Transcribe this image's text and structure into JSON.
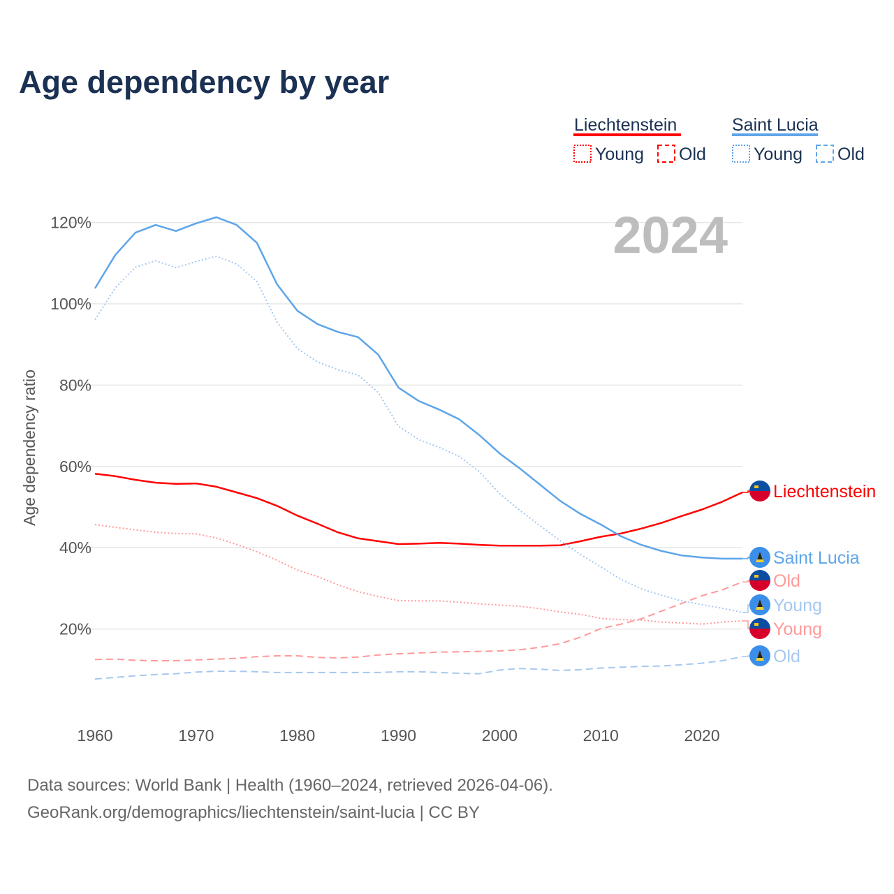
{
  "chart_data": {
    "type": "line",
    "title": "Age dependency by year",
    "year_label": "2024",
    "xlabel": "",
    "ylabel": "Age dependency ratio",
    "xlim": [
      1960,
      2024
    ],
    "ylim": [
      0,
      125
    ],
    "x_ticks": [
      "1960",
      "1970",
      "1980",
      "1990",
      "2000",
      "2010",
      "2020"
    ],
    "x_tick_values": [
      1960,
      1970,
      1980,
      1990,
      2000,
      2010,
      2020
    ],
    "y_ticks": [
      "20%",
      "40%",
      "60%",
      "80%",
      "100%",
      "120%"
    ],
    "y_tick_values": [
      20,
      40,
      60,
      80,
      100,
      120
    ],
    "grid": true,
    "legend": {
      "placement": "top-right",
      "groups": [
        {
          "country": "Liechtenstein",
          "color": "#ff0000",
          "items": [
            "Young",
            "Old"
          ]
        },
        {
          "country": "Saint Lucia",
          "color": "#5ea5e9",
          "items": [
            "Young",
            "Old"
          ]
        }
      ]
    },
    "x": [
      1960,
      1962,
      1964,
      1966,
      1968,
      1970,
      1972,
      1974,
      1976,
      1978,
      1980,
      1982,
      1984,
      1986,
      1988,
      1990,
      1992,
      1994,
      1996,
      1998,
      2000,
      2002,
      2004,
      2006,
      2008,
      2010,
      2012,
      2014,
      2016,
      2018,
      2020,
      2022,
      2024
    ],
    "series": [
      {
        "name": "Liechtenstein",
        "end_label": "Liechtenstein",
        "country": "Liechtenstein",
        "kind": "total",
        "color": "#ff0000",
        "dash": "solid",
        "values": [
          58.2,
          57.6,
          56.7,
          56.0,
          55.7,
          55.8,
          55.0,
          53.6,
          52.2,
          50.3,
          47.9,
          45.9,
          43.8,
          42.3,
          41.6,
          40.9,
          41.0,
          41.2,
          41.0,
          40.7,
          40.5,
          40.5,
          40.5,
          40.6,
          41.6,
          42.7,
          43.5,
          44.7,
          46.1,
          47.8,
          49.4,
          51.3,
          53.6
        ]
      },
      {
        "name": "Saint Lucia",
        "end_label": "Saint Lucia",
        "country": "Saint Lucia",
        "kind": "total",
        "color": "#5ea5e9",
        "dash": "solid",
        "values": [
          103.8,
          112.0,
          117.5,
          119.4,
          117.9,
          119.8,
          121.3,
          119.4,
          115.0,
          104.8,
          98.3,
          95.0,
          93.1,
          91.8,
          87.5,
          79.4,
          76.1,
          74.0,
          71.6,
          67.7,
          63.2,
          59.5,
          55.5,
          51.5,
          48.3,
          45.7,
          42.8,
          40.7,
          39.2,
          38.1,
          37.6,
          37.3,
          37.3
        ]
      },
      {
        "name": "Liechtenstein Old",
        "end_label": "Old",
        "country": "Liechtenstein",
        "kind": "old",
        "color": "#ff9a9a",
        "dash": "dashed",
        "values": [
          12.5,
          12.6,
          12.3,
          12.2,
          12.2,
          12.4,
          12.6,
          12.8,
          13.2,
          13.4,
          13.4,
          13.0,
          12.9,
          13.1,
          13.6,
          13.9,
          14.1,
          14.3,
          14.4,
          14.5,
          14.6,
          14.9,
          15.5,
          16.4,
          18.0,
          20.1,
          21.2,
          22.5,
          24.4,
          26.3,
          28.2,
          29.6,
          31.6
        ]
      },
      {
        "name": "Saint Lucia Young",
        "end_label": "Young",
        "country": "Saint Lucia",
        "kind": "young",
        "color": "#a6c8f0",
        "dash": "dotted",
        "values": [
          96.1,
          103.9,
          109.0,
          110.6,
          108.9,
          110.4,
          111.7,
          109.8,
          105.5,
          95.5,
          89.0,
          85.7,
          83.8,
          82.5,
          78.2,
          69.9,
          66.6,
          64.7,
          62.5,
          58.7,
          53.3,
          49.2,
          45.4,
          41.7,
          38.3,
          35.3,
          32.2,
          29.9,
          28.3,
          26.9,
          26.0,
          25.1,
          24.1
        ]
      },
      {
        "name": "Liechtenstein Young",
        "end_label": "Young",
        "country": "Liechtenstein",
        "kind": "young",
        "color": "#ff9a9a",
        "dash": "dotted",
        "values": [
          45.7,
          45.0,
          44.4,
          43.8,
          43.5,
          43.4,
          42.4,
          40.8,
          39.0,
          36.9,
          34.5,
          32.9,
          30.9,
          29.2,
          28.0,
          27.0,
          26.9,
          26.9,
          26.6,
          26.2,
          25.9,
          25.6,
          25.0,
          24.2,
          23.6,
          22.6,
          22.3,
          22.2,
          21.7,
          21.5,
          21.2,
          21.7,
          22.0
        ]
      },
      {
        "name": "Saint Lucia Old",
        "end_label": "Old",
        "country": "Saint Lucia",
        "kind": "old",
        "color": "#a6c8f0",
        "dash": "dashed",
        "values": [
          7.7,
          8.1,
          8.5,
          8.8,
          9.0,
          9.4,
          9.6,
          9.6,
          9.5,
          9.3,
          9.3,
          9.3,
          9.3,
          9.3,
          9.3,
          9.5,
          9.5,
          9.3,
          9.1,
          9.0,
          9.9,
          10.3,
          10.1,
          9.8,
          10.0,
          10.4,
          10.6,
          10.8,
          10.9,
          11.2,
          11.6,
          12.2,
          13.2
        ]
      }
    ]
  },
  "footer": {
    "sources": "Data sources: World Bank | Health (1960–2024, retrieved 2026-04-06).",
    "attribution": "GeoRank.org/demographics/liechtenstein/saint-lucia | CC BY"
  },
  "colors": {
    "title": "#1b3153",
    "axis_text": "#555555",
    "grid": "#e6e6e6",
    "year": "#bdbdbd"
  }
}
